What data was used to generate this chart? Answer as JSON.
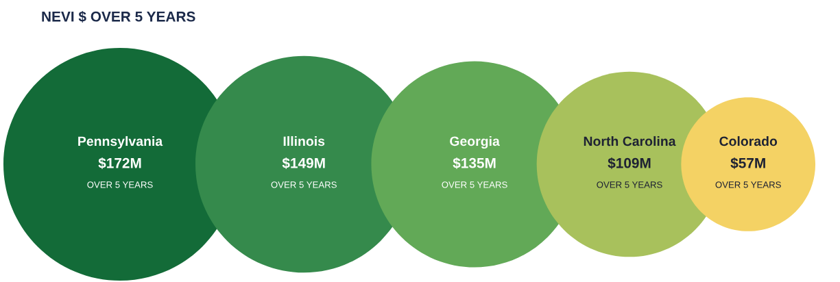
{
  "chart_data": {
    "type": "other",
    "title": "NEVI $ OVER 5 YEARS",
    "categories": [
      "Pennsylvania",
      "Illinois",
      "Georgia",
      "North Carolina",
      "Colorado"
    ],
    "values": [
      172,
      149,
      135,
      109,
      57
    ],
    "value_labels": [
      "$172M",
      "$149M",
      "$135M",
      "$109M",
      "$57M"
    ],
    "colors": [
      "#136b38",
      "#358a4c",
      "#62a957",
      "#a8c15c",
      "#f4d264"
    ],
    "annotations": [
      "OVER 5 YEARS",
      "OVER 5 YEARS",
      "OVER 5 YEARS",
      "OVER 5 YEARS",
      "OVER 5 YEARS"
    ]
  }
}
